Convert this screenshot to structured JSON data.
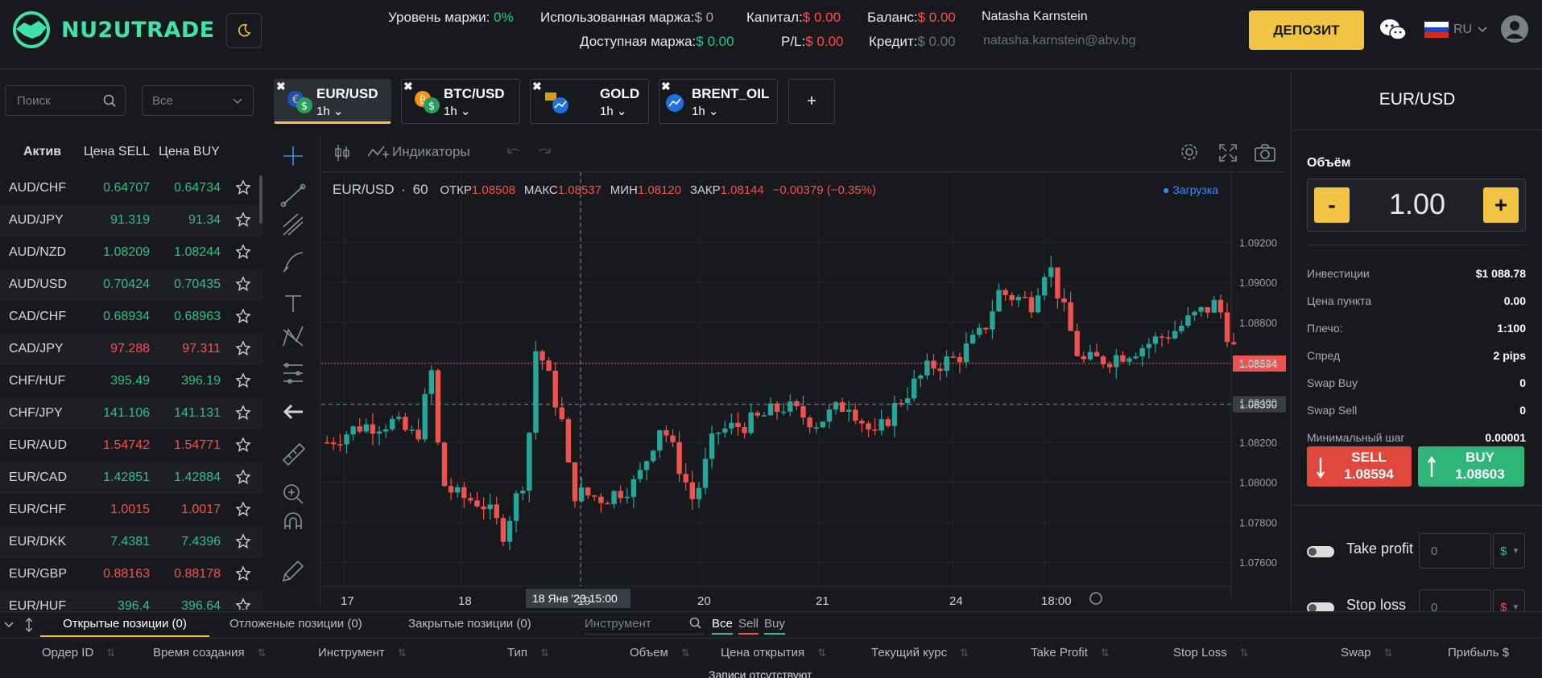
{
  "header": {
    "logo_text": "NU2UTRADE",
    "margin_level_label": "Уровень маржи:",
    "margin_level_value": "0%",
    "used_margin_label": "Использованная маржа:",
    "used_margin_value": "$ 0",
    "capital_label": "Капитал:",
    "capital_value": "$ 0.00",
    "balance_label": "Баланс:",
    "balance_value": "$ 0.00",
    "user_name": "Natasha Karnstein",
    "available_margin_label": "Доступная маржа:",
    "available_margin_value": "$ 0.00",
    "pl_label": "P/L:",
    "pl_value": "$ 0.00",
    "credit_label": "Кредит:",
    "credit_value": "$ 0.00",
    "user_email": "natasha.karnstein@abv.bg",
    "deposit_label": "ДЕПОЗИТ",
    "language": "RU"
  },
  "assets": {
    "search_placeholder": "Поиск",
    "filter_value": "Все",
    "col_asset": "Актив",
    "col_sell": "Цена SELL",
    "col_buy": "Цена BUY",
    "rows": [
      {
        "name": "AUD/CHF",
        "sell": "0.64707",
        "buy": "0.64734",
        "color": "#27c48a"
      },
      {
        "name": "AUD/JPY",
        "sell": "91.319",
        "buy": "91.34",
        "color": "#27c48a"
      },
      {
        "name": "AUD/NZD",
        "sell": "1.08209",
        "buy": "1.08244",
        "color": "#27c48a"
      },
      {
        "name": "AUD/USD",
        "sell": "0.70424",
        "buy": "0.70435",
        "color": "#27c48a"
      },
      {
        "name": "CAD/CHF",
        "sell": "0.68934",
        "buy": "0.68963",
        "color": "#27c48a"
      },
      {
        "name": "CAD/JPY",
        "sell": "97.288",
        "buy": "97.311",
        "color": "#ff4d4d"
      },
      {
        "name": "CHF/HUF",
        "sell": "395.49",
        "buy": "396.19",
        "color": "#27c48a"
      },
      {
        "name": "CHF/JPY",
        "sell": "141.106",
        "buy": "141.131",
        "color": "#27c48a"
      },
      {
        "name": "EUR/AUD",
        "sell": "1.54742",
        "buy": "1.54771",
        "color": "#ff4d4d"
      },
      {
        "name": "EUR/CAD",
        "sell": "1.42851",
        "buy": "1.42884",
        "color": "#27c48a"
      },
      {
        "name": "EUR/CHF",
        "sell": "1.0015",
        "buy": "1.0017",
        "color": "#ff4d4d"
      },
      {
        "name": "EUR/DKK",
        "sell": "7.4381",
        "buy": "7.4396",
        "color": "#27c48a"
      },
      {
        "name": "EUR/GBP",
        "sell": "0.88163",
        "buy": "0.88178",
        "color": "#ff4d4d"
      },
      {
        "name": "EUR/HUF",
        "sell": "396.4",
        "buy": "396.64",
        "color": "#27c48a"
      }
    ]
  },
  "tabs": [
    {
      "label": "EUR/USD",
      "tf": "1h",
      "active": true
    },
    {
      "label": "BTC/USD",
      "tf": "1h",
      "active": false
    },
    {
      "label": "GOLD",
      "tf": "1h",
      "active": false
    },
    {
      "label": "BRENT_OIL",
      "tf": "1h",
      "active": false
    }
  ],
  "add_tab_label": "+",
  "chart_toolbar": {
    "indicators_label": "Индикаторы"
  },
  "chart_legend": {
    "symbol": "EUR/USD",
    "interval": "60",
    "open_label": "ОТКР",
    "open": "1.08508",
    "high_label": "МАКС",
    "high": "1.08537",
    "low_label": "МИН",
    "low": "1.08120",
    "close_label": "ЗАКР",
    "close": "1.08144",
    "change": "−0.00379 (−0.35%)",
    "loading": "Загрузка"
  },
  "chart_data": {
    "type": "candlestick",
    "y_ticks": [
      "1.09200",
      "1.09000",
      "1.08800",
      "1.08600",
      "1.08400",
      "1.08200",
      "1.08000",
      "1.07800",
      "1.07600"
    ],
    "x_ticks": [
      "17",
      "18",
      "19",
      "20",
      "21",
      "24",
      "18:00"
    ],
    "current_price": "1.08594",
    "crosshair_price": "1.08390",
    "crosshair_time": "18 Янв '23   15:00",
    "ylim": [
      1.075,
      1.0935
    ],
    "colors": {
      "up": "#26a69a",
      "down": "#ef5350"
    }
  },
  "trade": {
    "title": "EUR/USD",
    "volume_label": "Объём",
    "volume_value": "1.00",
    "minus": "-",
    "plus": "+",
    "info": [
      {
        "k": "Инвестиции",
        "v": "$1 088.78"
      },
      {
        "k": "Цена пункта",
        "v": "0.00"
      },
      {
        "k": "Плечо:",
        "v": "1:100"
      },
      {
        "k": "Спред",
        "v": "2 pips"
      },
      {
        "k": "Swap Buy",
        "v": "0"
      },
      {
        "k": "Swap Sell",
        "v": "0"
      },
      {
        "k": "Минимальный шаг",
        "v": "0.00001"
      }
    ],
    "sell_label": "SELL",
    "sell_price": "1.08594",
    "buy_label": "BUY",
    "buy_price": "1.08603",
    "take_profit_label": "Take profit",
    "take_profit_value": "0",
    "stop_loss_label": "Stop loss",
    "stop_loss_value": "0",
    "currency": "$"
  },
  "bottom": {
    "tab_open": "Открытые позиции (0)",
    "tab_pending": "Отложеные позиции (0)",
    "tab_closed": "Закрытые позиции (0)",
    "instrument_placeholder": "Инструмент",
    "f_all": "Все",
    "f_sell": "Sell",
    "f_buy": "Buy",
    "cols": [
      "Ордер ID",
      "Время создания",
      "Инструмент",
      "Тип",
      "Объем",
      "Цена открытия",
      "Текущий курс",
      "Take Profit",
      "Stop Loss",
      "Swap",
      "Прибыль $"
    ],
    "empty": "Записи отсутствуют"
  }
}
